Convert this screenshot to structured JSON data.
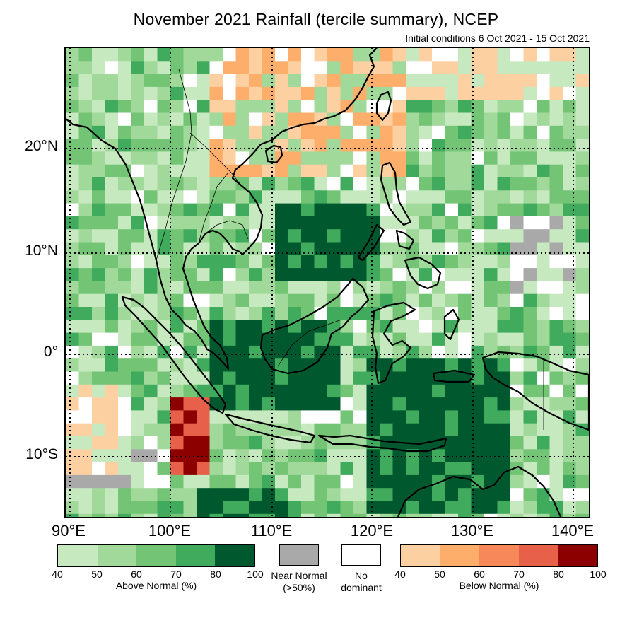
{
  "title": "November 2021 Rainfall (tercile summary), NCEP",
  "subtitle": "Initial conditions 6 Oct 2021 - 15 Oct 2021",
  "map": {
    "lat_labels": [
      "20°N",
      "10°N",
      "0°",
      "10°S"
    ],
    "lon_labels": [
      "90°E",
      "100°E",
      "110°E",
      "120°E",
      "130°E",
      "140°E"
    ]
  },
  "legend": {
    "above": {
      "label": "Above Normal (%)",
      "ticks": [
        "40",
        "50",
        "60",
        "70",
        "80",
        "100"
      ],
      "colors": [
        "#c7e9c0",
        "#a1d99b",
        "#74c476",
        "#41ab5d",
        "#00582e"
      ]
    },
    "near": {
      "label_line1": "Near Normal",
      "label_line2": "(>50%)",
      "color": "#a9a9a9"
    },
    "none": {
      "label_line1": "No",
      "label_line2": "dominant",
      "color": "#ffffff"
    },
    "below": {
      "label": "Below Normal (%)",
      "ticks": [
        "40",
        "50",
        "60",
        "70",
        "80",
        "100"
      ],
      "colors": [
        "#fdd0a2",
        "#fdae6b",
        "#f6885a",
        "#e6604a",
        "#8c0000"
      ]
    }
  }
}
